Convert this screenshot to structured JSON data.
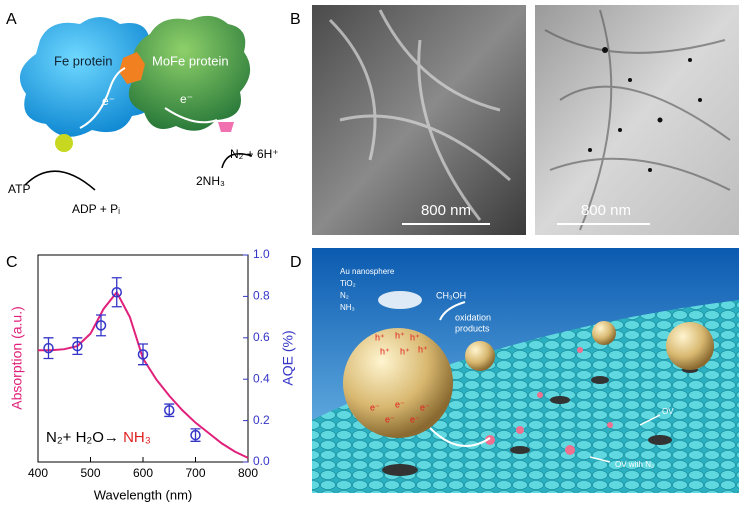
{
  "panels": {
    "A": {
      "label": "A",
      "fe": "Fe protein",
      "mofe": "MoFe protein",
      "e1": "e⁻",
      "e2": "e⁻",
      "n2": "N₂ + 6H⁺",
      "nh3": "2NH₃",
      "atp": "ATP",
      "adp": "ADP + Pᵢ"
    },
    "B": {
      "label": "B",
      "scale1": "800 nm",
      "scale2": "800 nm"
    },
    "C": {
      "label": "C"
    },
    "D": {
      "label": "D",
      "legend": [
        "Au nanosphere",
        "TiO₂",
        "N₂",
        "NH₃"
      ],
      "ch3oh": "CH₃OH",
      "products": [
        "oxidation",
        "products"
      ],
      "holes": [
        "h⁺",
        "h⁺",
        "h⁺",
        "h⁺",
        "h⁺",
        "h⁺"
      ],
      "electrons": [
        "e⁻",
        "e⁻",
        "e⁻",
        "e⁻",
        "e⁻"
      ],
      "ov": "OV",
      "ovn2": "OV with N₂"
    }
  },
  "chart_data": {
    "type": "line",
    "xlabel": "Wavelength (nm)",
    "ylabel": "Absorption (a.u.)",
    "y2label": "AQE (%)",
    "annotation": {
      "text": "N₂+ H₂O→ ",
      "product": "NH₃"
    },
    "xlim": [
      400,
      800
    ],
    "xticks": [
      400,
      500,
      600,
      700,
      800
    ],
    "ylim": [
      0,
      1
    ],
    "y2lim": [
      0,
      1
    ],
    "y2ticks": [
      {
        "value": 0,
        "label": "0.0"
      },
      0.2,
      0.4,
      0.6,
      0.8,
      {
        "value": 1,
        "label": "1.0"
      }
    ],
    "series": [
      {
        "type": "line",
        "color": "#e0207a",
        "x": [
          400,
          425,
          450,
          475,
          500,
          525,
          550,
          575,
          600,
          625,
          650,
          675,
          700,
          725,
          750,
          775,
          800
        ],
        "values": [
          0.54,
          0.54,
          0.545,
          0.56,
          0.62,
          0.74,
          0.82,
          0.7,
          0.5,
          0.4,
          0.32,
          0.25,
          0.19,
          0.14,
          0.09,
          0.05,
          0.02
        ]
      },
      {
        "type": "scatter",
        "axis": "y2",
        "color": "#3535c8",
        "x": [
          420,
          475,
          520,
          550,
          600,
          650,
          700
        ],
        "values": [
          0.55,
          0.56,
          0.66,
          0.82,
          0.52,
          0.25,
          0.13
        ],
        "errors": [
          0.05,
          0.04,
          0.05,
          0.07,
          0.05,
          0.03,
          0.03
        ]
      }
    ]
  }
}
